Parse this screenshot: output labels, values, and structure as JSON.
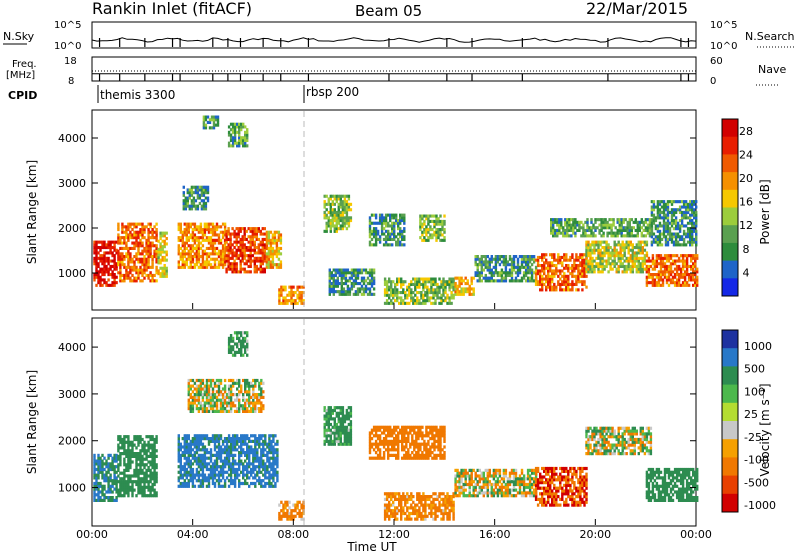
{
  "header": {
    "title": "Rankin Inlet (fitACF)",
    "beam": "Beam 05",
    "date": "22/Mar/2015"
  },
  "nsky_panel": {
    "left_label": "N.Sky",
    "left_ticks": [
      "10^5",
      "10^0"
    ],
    "right_label": "N.Search",
    "right_ticks": [
      "10^5",
      "10^0"
    ]
  },
  "freq_panel": {
    "left_label_top": "Freq.",
    "left_label_unit": "[MHz]",
    "left_ticks": [
      "18",
      "8"
    ],
    "right_label": "Nave",
    "right_ticks": [
      "60",
      "0"
    ],
    "freq_level_mhz": 11,
    "nave_level": 25
  },
  "cpid": {
    "label": "CPID",
    "modes": [
      {
        "name": "themis 3300",
        "start_hour": 0.35
      },
      {
        "name": "rbsp 200",
        "start_hour": 8.6
      }
    ]
  },
  "colors": {
    "power_scale": [
      "#1428e6",
      "#1e64c8",
      "#2d8c3c",
      "#5aa050",
      "#9ccd3c",
      "#f5c800",
      "#f59000",
      "#f05a00",
      "#e81e00",
      "#d20000"
    ],
    "velocity_scale": [
      "#1e32a0",
      "#2878c8",
      "#2d8c50",
      "#4cb84c",
      "#b4dc32",
      "#c8c8c8",
      "#f5a000",
      "#f07800",
      "#e84000",
      "#d20000"
    ]
  },
  "chart_data": [
    {
      "type": "heatmap",
      "name": "power",
      "ylabel": "Slant Range [km]",
      "yticks": [
        1000,
        2000,
        3000,
        4000
      ],
      "ylim": [
        200,
        4600
      ],
      "xlim_hours": [
        0,
        24
      ],
      "colorbar_label": "Power [dB]",
      "colorbar_ticks": [
        4,
        8,
        12,
        16,
        20,
        24,
        28
      ],
      "colorbar_range": [
        0,
        30
      ],
      "regions": [
        {
          "t0": 0.05,
          "t1": 1.0,
          "r0": 700,
          "r1": 1700,
          "value": 28
        },
        {
          "t0": 1.0,
          "t1": 2.6,
          "r0": 800,
          "r1": 2100,
          "value": 22
        },
        {
          "t0": 2.6,
          "t1": 3.0,
          "r0": 900,
          "r1": 1900,
          "value": 16
        },
        {
          "t0": 3.4,
          "t1": 5.3,
          "r0": 1100,
          "r1": 2100,
          "value": 20
        },
        {
          "t0": 5.3,
          "t1": 6.9,
          "r0": 1000,
          "r1": 2000,
          "value": 24
        },
        {
          "t0": 6.9,
          "t1": 7.5,
          "r0": 1100,
          "r1": 1900,
          "value": 18
        },
        {
          "t0": 3.6,
          "t1": 4.6,
          "r0": 2400,
          "r1": 2900,
          "value": 8
        },
        {
          "t0": 5.4,
          "t1": 6.2,
          "r0": 3800,
          "r1": 4300,
          "value": 10
        },
        {
          "t0": 4.4,
          "t1": 5.0,
          "r0": 4200,
          "r1": 4500,
          "value": 8
        },
        {
          "t0": 9.2,
          "t1": 10.3,
          "r0": 1900,
          "r1": 2700,
          "value": 12
        },
        {
          "t0": 11.0,
          "t1": 12.4,
          "r0": 1600,
          "r1": 2300,
          "value": 8
        },
        {
          "t0": 13.0,
          "t1": 14.0,
          "r0": 1700,
          "r1": 2300,
          "value": 12
        },
        {
          "t0": 9.4,
          "t1": 11.2,
          "r0": 500,
          "r1": 1100,
          "value": 8
        },
        {
          "t0": 11.6,
          "t1": 14.4,
          "r0": 300,
          "r1": 900,
          "value": 12
        },
        {
          "t0": 14.4,
          "t1": 15.2,
          "r0": 500,
          "r1": 900,
          "value": 18
        },
        {
          "t0": 15.2,
          "t1": 17.6,
          "r0": 800,
          "r1": 1400,
          "value": 8
        },
        {
          "t0": 17.6,
          "t1": 19.6,
          "r0": 600,
          "r1": 1400,
          "value": 22
        },
        {
          "t0": 19.6,
          "t1": 22.0,
          "r0": 1000,
          "r1": 1700,
          "value": 14
        },
        {
          "t0": 18.2,
          "t1": 22.2,
          "r0": 1800,
          "r1": 2200,
          "value": 10
        },
        {
          "t0": 22.0,
          "t1": 24.0,
          "r0": 700,
          "r1": 1400,
          "value": 22
        },
        {
          "t0": 22.2,
          "t1": 24.0,
          "r0": 1600,
          "r1": 2600,
          "value": 8
        },
        {
          "t0": 7.4,
          "t1": 8.4,
          "r0": 300,
          "r1": 700,
          "value": 20
        }
      ]
    },
    {
      "type": "heatmap",
      "name": "velocity",
      "ylabel": "Slant Range [km]",
      "yticks": [
        1000,
        2000,
        3000,
        4000
      ],
      "ylim": [
        200,
        4600
      ],
      "xlim_hours": [
        0,
        24
      ],
      "xticks": [
        "00:00",
        "04:00",
        "08:00",
        "12:00",
        "16:00",
        "20:00",
        "00:00"
      ],
      "xlabel": "Time UT",
      "colorbar_label": "Velocity [m s⁻¹]",
      "colorbar_ticks": [
        1000,
        500,
        100,
        25,
        -25,
        -100,
        -500,
        -1000
      ],
      "regions": [
        {
          "t0": 0.05,
          "t1": 1.0,
          "r0": 700,
          "r1": 1700,
          "value": 500
        },
        {
          "t0": 1.0,
          "t1": 2.6,
          "r0": 800,
          "r1": 2100,
          "value": 300
        },
        {
          "t0": 3.4,
          "t1": 7.4,
          "r0": 1000,
          "r1": 2100,
          "value": 600
        },
        {
          "t0": 3.8,
          "t1": 6.8,
          "r0": 2600,
          "r1": 3300,
          "value": 0
        },
        {
          "t0": 5.4,
          "t1": 6.2,
          "r0": 3800,
          "r1": 4300,
          "value": 200
        },
        {
          "t0": 9.2,
          "t1": 10.3,
          "r0": 1900,
          "r1": 2700,
          "value": 200
        },
        {
          "t0": 11.0,
          "t1": 14.0,
          "r0": 1600,
          "r1": 2300,
          "value": -300
        },
        {
          "t0": 11.6,
          "t1": 14.4,
          "r0": 300,
          "r1": 900,
          "value": -200
        },
        {
          "t0": 14.4,
          "t1": 17.6,
          "r0": 800,
          "r1": 1400,
          "value": 0
        },
        {
          "t0": 17.6,
          "t1": 19.6,
          "r0": 600,
          "r1": 1400,
          "value": -500
        },
        {
          "t0": 19.6,
          "t1": 22.2,
          "r0": 1700,
          "r1": 2300,
          "value": 0
        },
        {
          "t0": 22.0,
          "t1": 24.0,
          "r0": 700,
          "r1": 1400,
          "value": 300
        },
        {
          "t0": 7.4,
          "t1": 8.4,
          "r0": 300,
          "r1": 700,
          "value": -200
        }
      ]
    }
  ]
}
